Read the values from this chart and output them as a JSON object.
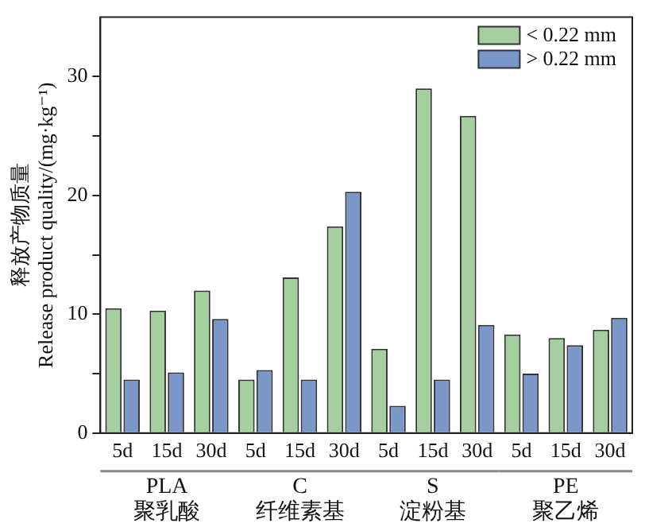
{
  "chart_data": {
    "type": "bar",
    "ylabel": "释放产物质量\nRelease product quality/(mg·kg⁻¹)",
    "categories": [
      "5d",
      "15d",
      "30d",
      "5d",
      "15d",
      "30d",
      "5d",
      "15d",
      "30d",
      "5d",
      "15d",
      "30d"
    ],
    "series": [
      {
        "name": "< 0.22 mm",
        "color": "#a6cfa0",
        "values": [
          10.5,
          10.3,
          12.0,
          4.5,
          13.1,
          17.4,
          7.1,
          29.0,
          26.7,
          8.3,
          8.0,
          8.7
        ]
      },
      {
        "name": "> 0.22 mm",
        "color": "#7b96c8",
        "values": [
          4.5,
          5.1,
          9.6,
          5.3,
          4.5,
          20.3,
          2.3,
          4.5,
          9.1,
          5.0,
          7.4,
          9.7
        ]
      }
    ],
    "ylim": [
      0,
      35
    ],
    "yticks": [
      0,
      {
        "value": 5,
        "label": null
      },
      10,
      {
        "value": 15,
        "label": null
      },
      20,
      {
        "value": 25,
        "label": null
      },
      30
    ],
    "annotations": [
      "PLA\n聚乳酸",
      "C\n纤维素基",
      "S\n淀粉基",
      "PE\n聚乙烯"
    ],
    "grid": false,
    "legend": "top right"
  }
}
